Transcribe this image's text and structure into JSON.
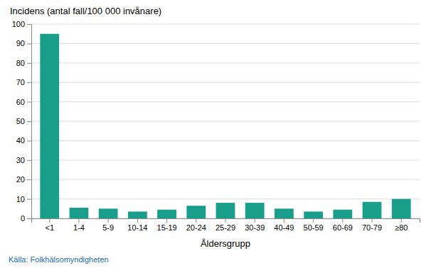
{
  "chart_data": {
    "type": "bar",
    "title": "Incidens (antal fall/100 000 invånare)",
    "xlabel": "Åldersgrupp",
    "categories": [
      "<1",
      "1-4",
      "5-9",
      "10-14",
      "15-19",
      "20-24",
      "25-29",
      "30-39",
      "40-49",
      "50-59",
      "60-69",
      "70-79",
      "≥80"
    ],
    "values": [
      95,
      5.5,
      5.0,
      3.5,
      4.5,
      6.5,
      8.0,
      8.0,
      5.0,
      3.5,
      4.5,
      8.5,
      10.0
    ],
    "color": "#1a9e8c",
    "ylim": [
      0,
      100
    ],
    "yticks": [
      0,
      10,
      20,
      30,
      40,
      50,
      60,
      70,
      80,
      90,
      100
    ],
    "grid": true,
    "annotations": [
      {
        "text": "Källa: Folkhälsomyndigheten",
        "color": "#1a6ca8"
      }
    ]
  }
}
